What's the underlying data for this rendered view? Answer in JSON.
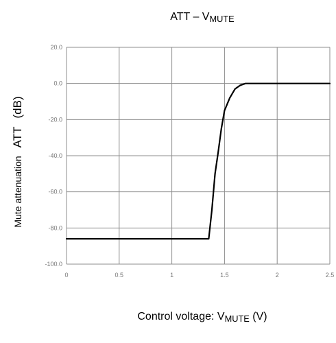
{
  "chart_data": {
    "type": "line",
    "title": {
      "prefix": "ATT – V",
      "sub": "MUTE"
    },
    "xlabel": {
      "prefix": "Control voltage: V",
      "sub": "MUTE",
      "suffix": " (V)"
    },
    "ylabel": {
      "part1": "Mute attenuation",
      "part2": "ATT",
      "part3": "(dB)"
    },
    "xlim": [
      0,
      2.5
    ],
    "ylim": [
      -100,
      20
    ],
    "x_ticks": [
      0,
      0.5,
      1,
      1.5,
      2,
      2.5
    ],
    "x_tick_labels": [
      "0",
      "0.5",
      "1",
      "1.5",
      "2",
      "2.5"
    ],
    "y_ticks": [
      20,
      0,
      -20,
      -40,
      -60,
      -80,
      -100
    ],
    "y_tick_labels": [
      "20.0",
      "0.0",
      "-20.0",
      "-40.0",
      "-60.0",
      "-80.0",
      "-100.0"
    ],
    "grid": true,
    "line_color": "#000000",
    "grid_color": "#8c8c8c",
    "series": [
      {
        "x": [
          0,
          0.5,
          1,
          1.2,
          1.35,
          1.38,
          1.41,
          1.44,
          1.47,
          1.5,
          1.55,
          1.6,
          1.65,
          1.7,
          1.8,
          2,
          2.5
        ],
        "y": [
          -86,
          -86,
          -86,
          -86,
          -86,
          -70,
          -50,
          -38,
          -25,
          -15,
          -8,
          -3,
          -1,
          0,
          0,
          0,
          0
        ]
      }
    ]
  }
}
